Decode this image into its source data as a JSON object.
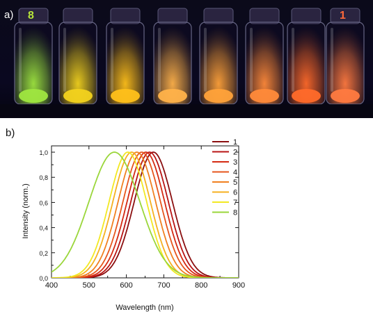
{
  "panel_a": {
    "letter": "a)",
    "left_vial_label": "8",
    "right_vial_label": "1",
    "left_label_color": "#b8e63a",
    "right_label_color": "#ff6a3a",
    "vial_glow_colors": [
      "#9fe640",
      "#f2d21e",
      "#ffc01a",
      "#ffb24a",
      "#ffa23a",
      "#ff8a3a",
      "#ff6a2a",
      "#ff7a40"
    ]
  },
  "panel_b": {
    "letter": "b)"
  },
  "chart_data": {
    "type": "line",
    "xlabel": "Wavelength (nm)",
    "ylabel": "Intensity (norm.)",
    "xlim": [
      400,
      900
    ],
    "ylim": [
      0,
      1.05
    ],
    "xticks": [
      400,
      500,
      600,
      700,
      800,
      900
    ],
    "yticks": [
      0.0,
      0.2,
      0.4,
      0.6,
      0.8,
      1.0
    ],
    "ytick_labels": [
      "0,0",
      "0,2",
      "0,4",
      "0,6",
      "0,8",
      "1,0"
    ],
    "grid": false,
    "legend_position": "top-right",
    "series": [
      {
        "name": "1",
        "color": "#8b0f10",
        "peak": 672,
        "fwhm": 120
      },
      {
        "name": "2",
        "color": "#b81414",
        "peak": 662,
        "fwhm": 118
      },
      {
        "name": "3",
        "color": "#d42a12",
        "peak": 652,
        "fwhm": 118
      },
      {
        "name": "4",
        "color": "#e6561c",
        "peak": 641,
        "fwhm": 118
      },
      {
        "name": "5",
        "color": "#f08020",
        "peak": 628,
        "fwhm": 118
      },
      {
        "name": "6",
        "color": "#f5b020",
        "peak": 614,
        "fwhm": 118
      },
      {
        "name": "7",
        "color": "#f2e822",
        "peak": 604,
        "fwhm": 118
      },
      {
        "name": "8",
        "color": "#9ad63a",
        "peak": 568,
        "fwhm": 160
      }
    ]
  }
}
